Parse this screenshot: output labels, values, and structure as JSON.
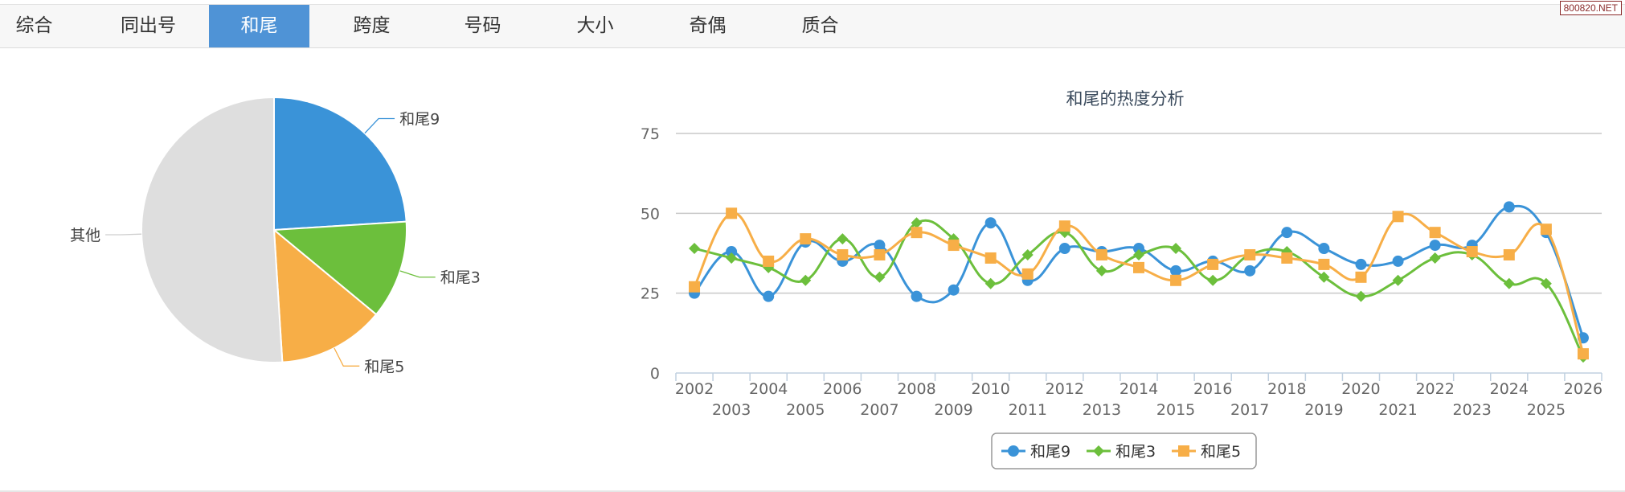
{
  "tabs": [
    {
      "label": "综合",
      "active": false
    },
    {
      "label": "同出号",
      "active": false
    },
    {
      "label": "和尾",
      "active": true
    },
    {
      "label": "跨度",
      "active": false
    },
    {
      "label": "号码",
      "active": false
    },
    {
      "label": "大小",
      "active": false
    },
    {
      "label": "奇偶",
      "active": false
    },
    {
      "label": "质合",
      "active": false
    }
  ],
  "watermark": "800820.NET",
  "colors": {
    "blue": "#3a93d8",
    "green": "#6cbf3c",
    "orange": "#f7ae47",
    "gray": "#dedede",
    "accent": "#4f93d6"
  },
  "chart_data": [
    {
      "type": "pie",
      "labels": [
        "和尾9",
        "和尾3",
        "和尾5",
        "其他"
      ],
      "values": [
        24,
        12,
        13,
        51
      ],
      "colors": [
        "#3a93d8",
        "#6cbf3c",
        "#f7ae47",
        "#dedede"
      ]
    },
    {
      "type": "line",
      "smooth": true,
      "title": "和尾的热度分析",
      "x": [
        2002,
        2003,
        2004,
        2005,
        2006,
        2007,
        2008,
        2009,
        2010,
        2011,
        2012,
        2013,
        2014,
        2015,
        2016,
        2017,
        2018,
        2019,
        2020,
        2021,
        2022,
        2023,
        2024,
        2025,
        2026
      ],
      "ylim": [
        0,
        75
      ],
      "yticks": [
        0,
        25,
        50,
        75
      ],
      "grid": true,
      "legend": "bottom-center",
      "series": [
        {
          "name": "和尾9",
          "color": "#3a93d8",
          "marker": "circle",
          "values": [
            25,
            38,
            24,
            41,
            35,
            40,
            24,
            26,
            47,
            29,
            39,
            38,
            39,
            32,
            35,
            32,
            44,
            39,
            34,
            35,
            40,
            40,
            52,
            44,
            11
          ]
        },
        {
          "name": "和尾3",
          "color": "#6cbf3c",
          "marker": "diamond",
          "values": [
            39,
            36,
            33,
            29,
            42,
            30,
            47,
            42,
            28,
            37,
            44,
            32,
            37,
            39,
            29,
            37,
            38,
            30,
            24,
            29,
            36,
            37,
            28,
            28,
            5
          ]
        },
        {
          "name": "和尾5",
          "color": "#f7ae47",
          "marker": "square",
          "values": [
            27,
            50,
            35,
            42,
            37,
            37,
            44,
            40,
            36,
            31,
            46,
            37,
            33,
            29,
            34,
            37,
            36,
            34,
            30,
            49,
            44,
            38,
            37,
            45,
            6
          ]
        }
      ]
    }
  ]
}
